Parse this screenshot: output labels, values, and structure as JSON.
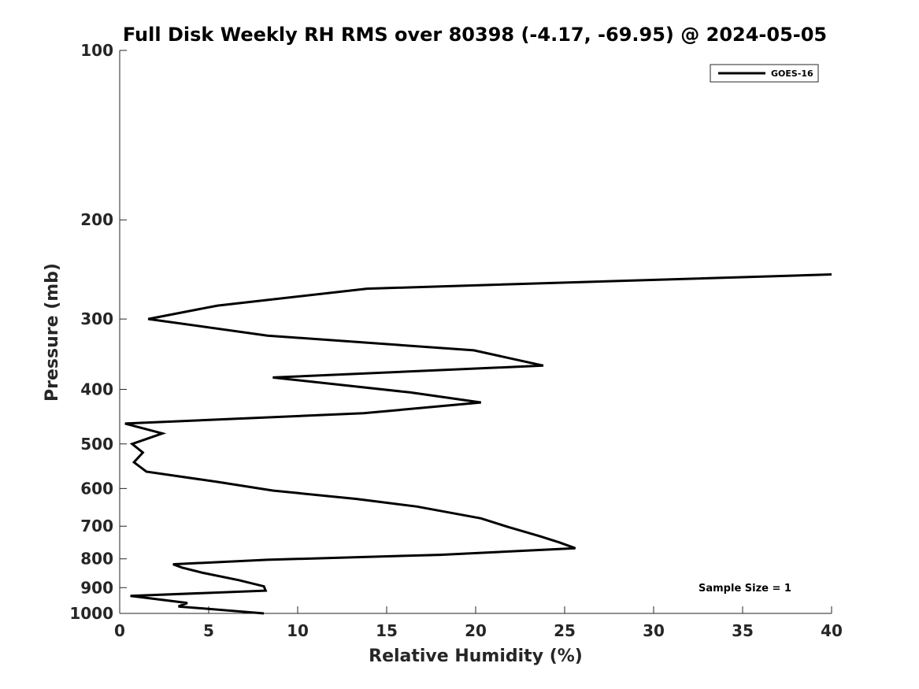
{
  "chart_data": {
    "type": "line",
    "title": "Full Disk Weekly RH RMS over 80398 (-4.17, -69.95) @ 2024-05-05",
    "xlabel": "Relative Humidity (%)",
    "ylabel": "Pressure (mb)",
    "xlim": [
      0,
      40
    ],
    "ylim": [
      100,
      1000
    ],
    "y_scale": "log",
    "y_reversed": true,
    "grid": false,
    "x_ticks": [
      "0",
      "5",
      "10",
      "15",
      "20",
      "25",
      "30",
      "35",
      "40"
    ],
    "y_ticks": [
      "100",
      "200",
      "300",
      "400",
      "500",
      "600",
      "700",
      "800",
      "900",
      "1000"
    ],
    "legend_position": "top-right",
    "annotation": "Sample Size = 1",
    "series": [
      {
        "name": "GOES-16",
        "color": "#000000",
        "points": [
          [
            40.0,
            250
          ],
          [
            13.9,
            265
          ],
          [
            5.5,
            284
          ],
          [
            1.6,
            300
          ],
          [
            8.3,
            321
          ],
          [
            19.9,
            341
          ],
          [
            23.8,
            363
          ],
          [
            8.6,
            381
          ],
          [
            16.3,
            405
          ],
          [
            20.3,
            422
          ],
          [
            13.7,
            441
          ],
          [
            0.3,
            460
          ],
          [
            2.4,
            479
          ],
          [
            0.7,
            500
          ],
          [
            1.3,
            518
          ],
          [
            0.8,
            539
          ],
          [
            1.5,
            560
          ],
          [
            5.5,
            584
          ],
          [
            8.6,
            605
          ],
          [
            13.3,
            626
          ],
          [
            16.7,
            646
          ],
          [
            20.3,
            678
          ],
          [
            21.8,
            702
          ],
          [
            23.6,
            729
          ],
          [
            24.7,
            748
          ],
          [
            25.6,
            766
          ],
          [
            18.0,
            787
          ],
          [
            8.3,
            803
          ],
          [
            3.0,
            818
          ],
          [
            3.5,
            829
          ],
          [
            4.6,
            846
          ],
          [
            6.7,
            873
          ],
          [
            8.1,
            895
          ],
          [
            8.2,
            911
          ],
          [
            0.6,
            931
          ],
          [
            3.8,
            958
          ],
          [
            3.3,
            972
          ],
          [
            8.1,
            1000
          ]
        ]
      }
    ]
  }
}
